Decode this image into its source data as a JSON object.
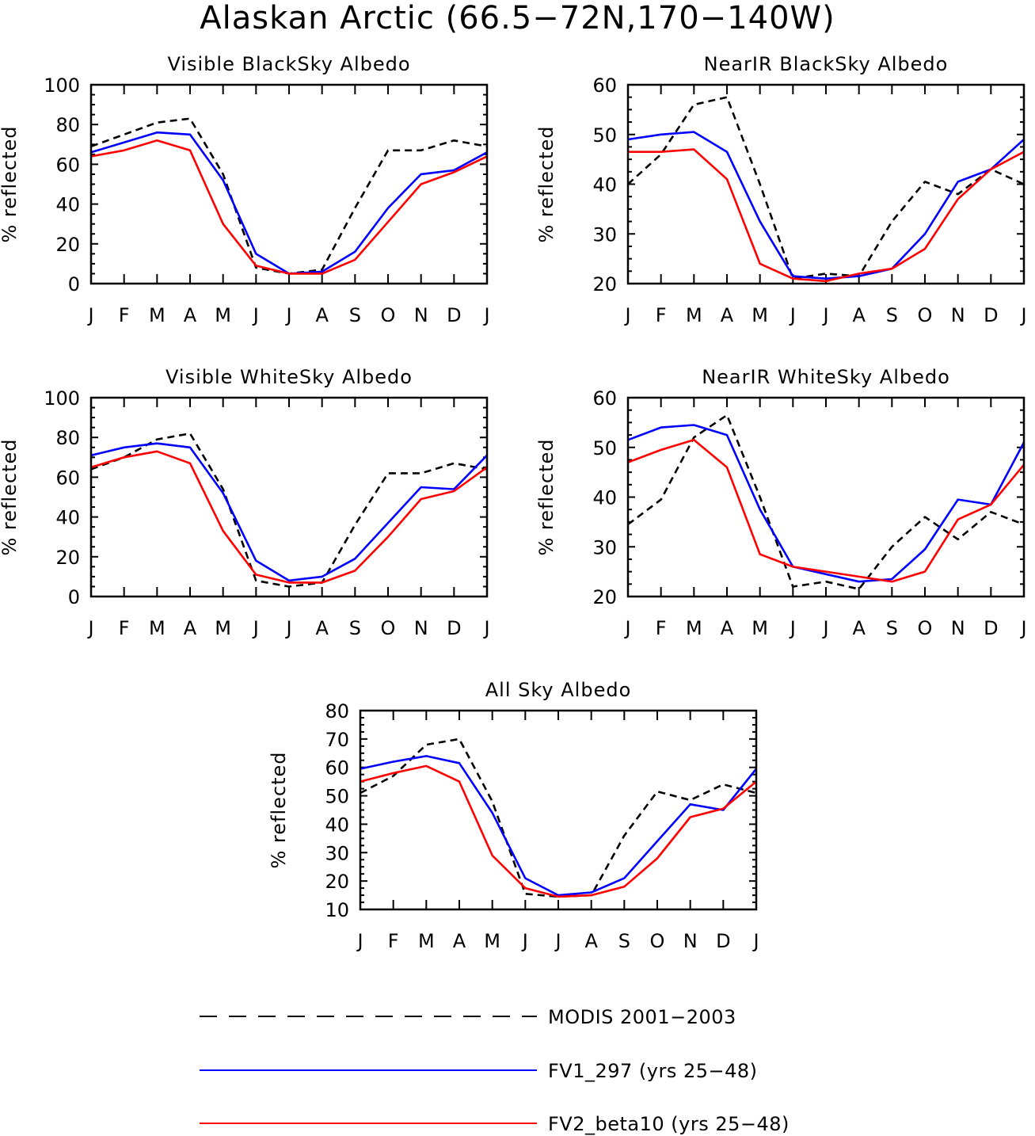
{
  "figure": {
    "title": "Alaskan Arctic (66.5−72N,170−140W)"
  },
  "chart_data": [
    {
      "type": "line",
      "title": "Visible BlackSky Albedo",
      "xlabel": "",
      "ylabel": "% reflected",
      "categories": [
        "J",
        "F",
        "M",
        "A",
        "M",
        "J",
        "J",
        "A",
        "S",
        "O",
        "N",
        "D",
        "J"
      ],
      "ylim": [
        0,
        100
      ],
      "yticks": [
        0,
        20,
        40,
        60,
        80,
        100
      ],
      "series": [
        {
          "name": "MODIS 2001−2003",
          "values": [
            69,
            75,
            81,
            83,
            55,
            8,
            5,
            7,
            38,
            67,
            67,
            72,
            69
          ]
        },
        {
          "name": "FV1_297 (yrs 25−48)",
          "values": [
            66,
            71,
            76,
            75,
            52,
            15,
            5,
            6,
            16,
            38,
            55,
            57,
            66
          ]
        },
        {
          "name": "FV2_beta10 (yrs 25−48)",
          "values": [
            64,
            67,
            72,
            67,
            30,
            9,
            5,
            5,
            12,
            31,
            50,
            56,
            64
          ]
        }
      ]
    },
    {
      "type": "line",
      "title": "NearIR BlackSky Albedo",
      "xlabel": "",
      "ylabel": "% reflected",
      "categories": [
        "J",
        "F",
        "M",
        "A",
        "M",
        "J",
        "J",
        "A",
        "S",
        "O",
        "N",
        "D",
        "J"
      ],
      "ylim": [
        20,
        60
      ],
      "yticks": [
        20,
        30,
        40,
        50,
        60
      ],
      "series": [
        {
          "name": "MODIS 2001−2003",
          "values": [
            40,
            46,
            56,
            57.5,
            40,
            21,
            22,
            21.5,
            32.5,
            40.5,
            38,
            43,
            40
          ]
        },
        {
          "name": "FV1_297 (yrs 25−48)",
          "values": [
            49,
            50,
            50.5,
            46.5,
            32.5,
            21.5,
            21,
            21.5,
            23,
            30,
            40.5,
            43,
            49
          ]
        },
        {
          "name": "FV2_beta10 (yrs 25−48)",
          "values": [
            46.5,
            46.5,
            47,
            41,
            24,
            21,
            20.5,
            22,
            23,
            27,
            37,
            43,
            46.5
          ]
        }
      ]
    },
    {
      "type": "line",
      "title": "Visible WhiteSky Albedo",
      "xlabel": "",
      "ylabel": "% reflected",
      "categories": [
        "J",
        "F",
        "M",
        "A",
        "M",
        "J",
        "J",
        "A",
        "S",
        "O",
        "N",
        "D",
        "J"
      ],
      "ylim": [
        0,
        100
      ],
      "yticks": [
        0,
        20,
        40,
        60,
        80,
        100
      ],
      "series": [
        {
          "name": "MODIS 2001−2003",
          "values": [
            64,
            70,
            79,
            82,
            54,
            8,
            5,
            7,
            36,
            62,
            62,
            67,
            64
          ]
        },
        {
          "name": "FV1_297 (yrs 25−48)",
          "values": [
            71,
            75,
            77,
            75,
            52,
            18,
            8,
            10,
            19,
            37,
            55,
            54,
            71
          ]
        },
        {
          "name": "FV2_beta10 (yrs 25−48)",
          "values": [
            65,
            70,
            73,
            67,
            33,
            11,
            7,
            7,
            13,
            30,
            49,
            53,
            65
          ]
        }
      ]
    },
    {
      "type": "line",
      "title": "NearIR WhiteSky Albedo",
      "xlabel": "",
      "ylabel": "% reflected",
      "categories": [
        "J",
        "F",
        "M",
        "A",
        "M",
        "J",
        "J",
        "A",
        "S",
        "O",
        "N",
        "D",
        "J"
      ],
      "ylim": [
        20,
        60
      ],
      "yticks": [
        20,
        30,
        40,
        50,
        60
      ],
      "series": [
        {
          "name": "MODIS 2001−2003",
          "values": [
            34.5,
            39.5,
            52,
            56.5,
            40,
            22,
            23,
            21.5,
            30,
            36,
            31.5,
            37,
            34.5
          ]
        },
        {
          "name": "FV1_297 (yrs 25−48)",
          "values": [
            51.5,
            54,
            54.5,
            52.5,
            37.5,
            26,
            24.5,
            23,
            23.5,
            29.5,
            39.5,
            38.5,
            51
          ]
        },
        {
          "name": "FV2_beta10 (yrs 25−48)",
          "values": [
            47,
            49.5,
            51.5,
            46,
            28.5,
            26,
            25,
            24,
            23,
            25,
            35.5,
            38.5,
            46.5
          ]
        }
      ]
    },
    {
      "type": "line",
      "title": "All Sky Albedo",
      "xlabel": "",
      "ylabel": "% reflected",
      "categories": [
        "J",
        "F",
        "M",
        "A",
        "M",
        "J",
        "J",
        "A",
        "S",
        "O",
        "N",
        "D",
        "J"
      ],
      "ylim": [
        10,
        80
      ],
      "yticks": [
        10,
        20,
        30,
        40,
        50,
        60,
        70,
        80
      ],
      "series": [
        {
          "name": "MODIS 2001−2003",
          "values": [
            51,
            57,
            68,
            70,
            48,
            15.5,
            14.5,
            15,
            36,
            51.5,
            48.5,
            54,
            51
          ]
        },
        {
          "name": "FV1_297 (yrs 25−48)",
          "values": [
            59.5,
            62,
            64,
            61.5,
            44,
            21,
            15,
            16,
            21,
            34,
            47,
            45,
            59.5
          ]
        },
        {
          "name": "FV2_beta10 (yrs 25−48)",
          "values": [
            55,
            58,
            60.5,
            55,
            29,
            17.5,
            14.5,
            15,
            18,
            28,
            42.5,
            45.5,
            55
          ]
        }
      ]
    }
  ],
  "legend": {
    "items": [
      {
        "label": "MODIS 2001−2003",
        "color": "#000000",
        "style": "dashed"
      },
      {
        "label": "FV1_297 (yrs 25−48)",
        "color": "#0000ff",
        "style": "solid"
      },
      {
        "label": "FV2_beta10 (yrs 25−48)",
        "color": "#ff0000",
        "style": "solid"
      }
    ]
  }
}
